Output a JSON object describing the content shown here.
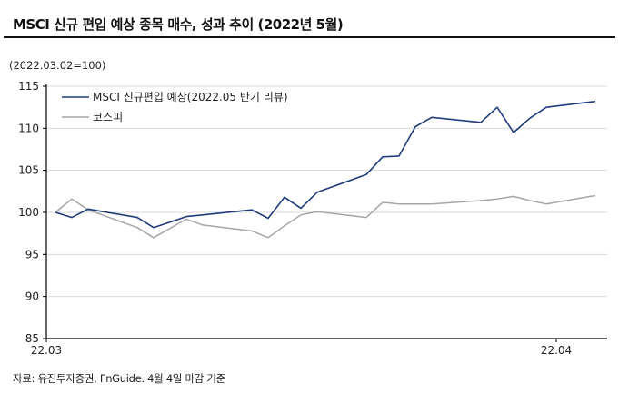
{
  "header": {
    "title": "MSCI 신규 편입 예상 종목 매수, 성과 추이 (2022년 5월)",
    "unit_note": "(2022.03.02=100)"
  },
  "footer": {
    "source": "자료: 유진투자증권, FnGuide. 4월 4일 마감 기준"
  },
  "colors": {
    "msci": "#1f3c7a",
    "kospi": "#a6a6a6",
    "grid": "#d9d9d9",
    "axis": "#000000"
  },
  "chart_data": {
    "type": "line",
    "title": "MSCI 신규 편입 예상 종목 매수, 성과 추이 (2022년 5월)",
    "ylabel": "(2022.03.02=100)",
    "xlabel": "",
    "ylim": [
      85,
      115
    ],
    "yticks": [
      85,
      90,
      95,
      100,
      105,
      110,
      115
    ],
    "xtick_labels": [
      "22.03",
      "22.04"
    ],
    "grid": true,
    "legend_position": "top-left inside",
    "x_index": [
      0,
      1,
      2,
      5,
      6,
      8,
      9,
      12,
      13,
      14,
      15,
      16,
      19,
      20,
      21,
      22,
      23,
      26,
      27,
      28,
      29,
      30,
      33
    ],
    "series": [
      {
        "name": "MSCI 신규편입 예상(2022.05 반기 리뷰)",
        "values": [
          100.0,
          99.4,
          100.4,
          99.4,
          98.2,
          99.5,
          99.7,
          100.3,
          99.3,
          101.8,
          100.5,
          102.4,
          104.5,
          106.6,
          106.7,
          110.2,
          111.3,
          110.7,
          112.5,
          109.5,
          111.2,
          112.5,
          113.2
        ]
      },
      {
        "name": "코스피",
        "values": [
          100.0,
          101.6,
          100.3,
          98.2,
          97.0,
          99.2,
          98.5,
          97.8,
          97.0,
          98.4,
          99.7,
          100.1,
          99.4,
          101.2,
          101.0,
          101.0,
          101.0,
          101.4,
          101.6,
          101.9,
          101.4,
          101.0,
          102.0
        ]
      }
    ]
  }
}
